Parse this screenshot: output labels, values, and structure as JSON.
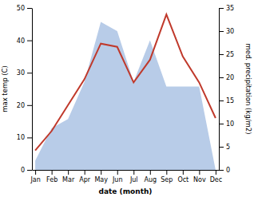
{
  "chart_data": {
    "type": "line",
    "xlabel": "date (month)",
    "ylabel": "max temp (C)",
    "y2label": "med. precipitation (kg/m2)",
    "categories": [
      "Jan",
      "Feb",
      "Mar",
      "Apr",
      "May",
      "Jun",
      "Jul",
      "Aug",
      "Sep",
      "Oct",
      "Nov",
      "Dec"
    ],
    "series": [
      {
        "type": "area",
        "axis": "y2",
        "color": "#b8cce8",
        "values": [
          2,
          9,
          11,
          19,
          32,
          30,
          19,
          28,
          18,
          18,
          18,
          0
        ]
      },
      {
        "type": "line",
        "color": "#c0392b",
        "values": [
          6,
          12,
          20,
          28,
          39,
          38,
          27,
          34,
          48,
          35,
          27,
          16
        ]
      }
    ],
    "ylim": [
      0,
      50
    ],
    "yticks": [
      0,
      10,
      20,
      30,
      40,
      50
    ],
    "y2lim": [
      0,
      35
    ],
    "y2ticks": [
      0,
      5,
      10,
      15,
      20,
      25,
      30,
      35
    ],
    "grid": false
  }
}
